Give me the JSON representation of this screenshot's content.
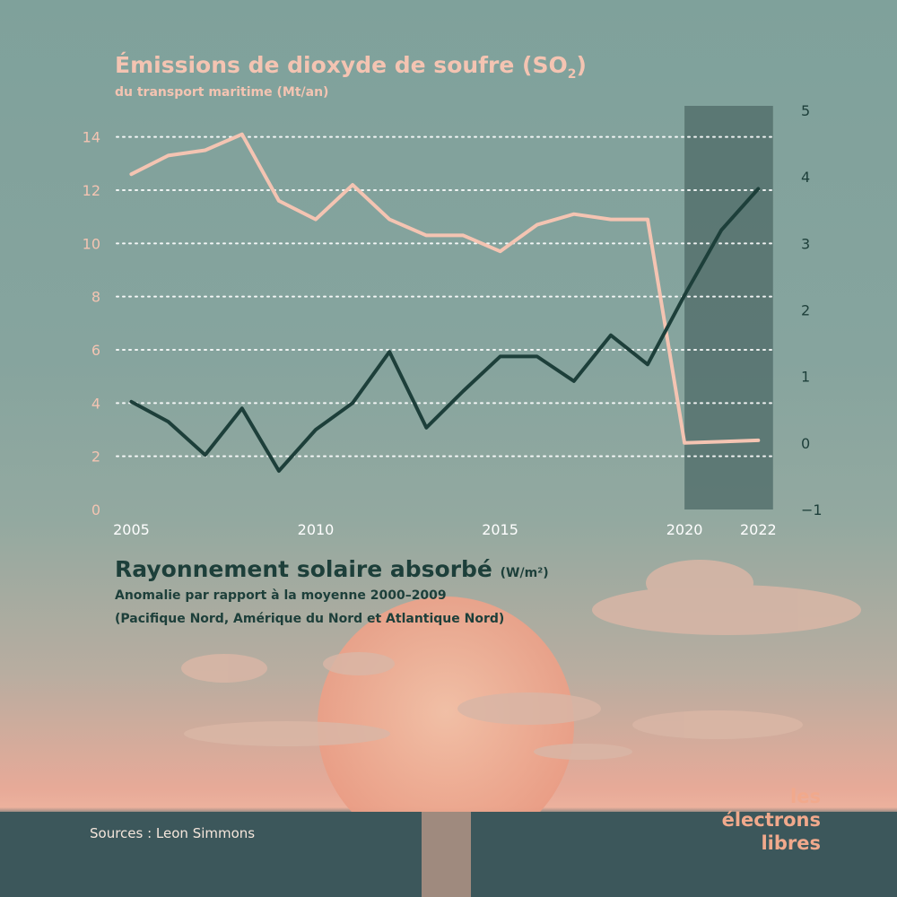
{
  "colors": {
    "so2_line": "#f4c4b2",
    "radiation_line": "#1d3f3a",
    "left_axis_text": "#f4c4b2",
    "right_axis_text": "#1d3f3a",
    "highlight": "#55716d",
    "grid": "#ffffff"
  },
  "titles": {
    "so2_title": "Émissions de dioxyde de soufre (SO",
    "so2_subscript": "2",
    "so2_close": ")",
    "so2_subtitle": "du transport maritime (Mt/an)",
    "radiation_title": "Rayonnement solaire absorbé",
    "radiation_unit": "(W/m²)",
    "radiation_subtitle_1": "Anomalie par rapport à la moyenne 2000–2009",
    "radiation_subtitle_2": "(Pacifique Nord, Amérique du Nord et Atlantique Nord)"
  },
  "sources": "Sources : Leon Simmons",
  "logo": {
    "line1": "les électrons",
    "line2": "libres"
  },
  "chart_data": {
    "type": "line",
    "x": [
      2005,
      2006,
      2007,
      2008,
      2009,
      2010,
      2011,
      2012,
      2013,
      2014,
      2015,
      2016,
      2017,
      2018,
      2019,
      2020,
      2021,
      2022
    ],
    "x_ticks": [
      2005,
      2010,
      2015,
      2020,
      2022
    ],
    "xlim": [
      2004.6,
      2022.6
    ],
    "highlight_range": [
      2020,
      2022.4
    ],
    "grid": "horizontal dotted",
    "series": [
      {
        "axis": "left",
        "values": [
          12.6,
          13.3,
          13.5,
          14.1,
          11.6,
          10.9,
          12.2,
          10.9,
          10.3,
          10.3,
          9.7,
          10.7,
          11.1,
          10.9,
          10.9,
          2.5,
          2.55,
          2.6
        ]
      },
      {
        "axis": "right",
        "x": [
          2005,
          2006,
          2007,
          2008,
          2009,
          2010,
          2011,
          2012,
          2013,
          2014,
          2015,
          2016,
          2017,
          2018,
          2019,
          2020,
          2021,
          2022
        ],
        "values": [
          0.62,
          0.32,
          -0.18,
          0.52,
          -0.42,
          0.2,
          0.6,
          1.37,
          0.23,
          0.78,
          1.3,
          1.3,
          0.93,
          1.62,
          1.18,
          2.22,
          3.2,
          3.82
        ]
      }
    ],
    "y_left": {
      "lim": [
        0,
        15
      ],
      "ticks": [
        0,
        2,
        4,
        6,
        8,
        10,
        12,
        14
      ]
    },
    "y_right": {
      "lim": [
        -1,
        5
      ],
      "ticks": [
        -1,
        0,
        1,
        2,
        3,
        4,
        5
      ]
    }
  }
}
